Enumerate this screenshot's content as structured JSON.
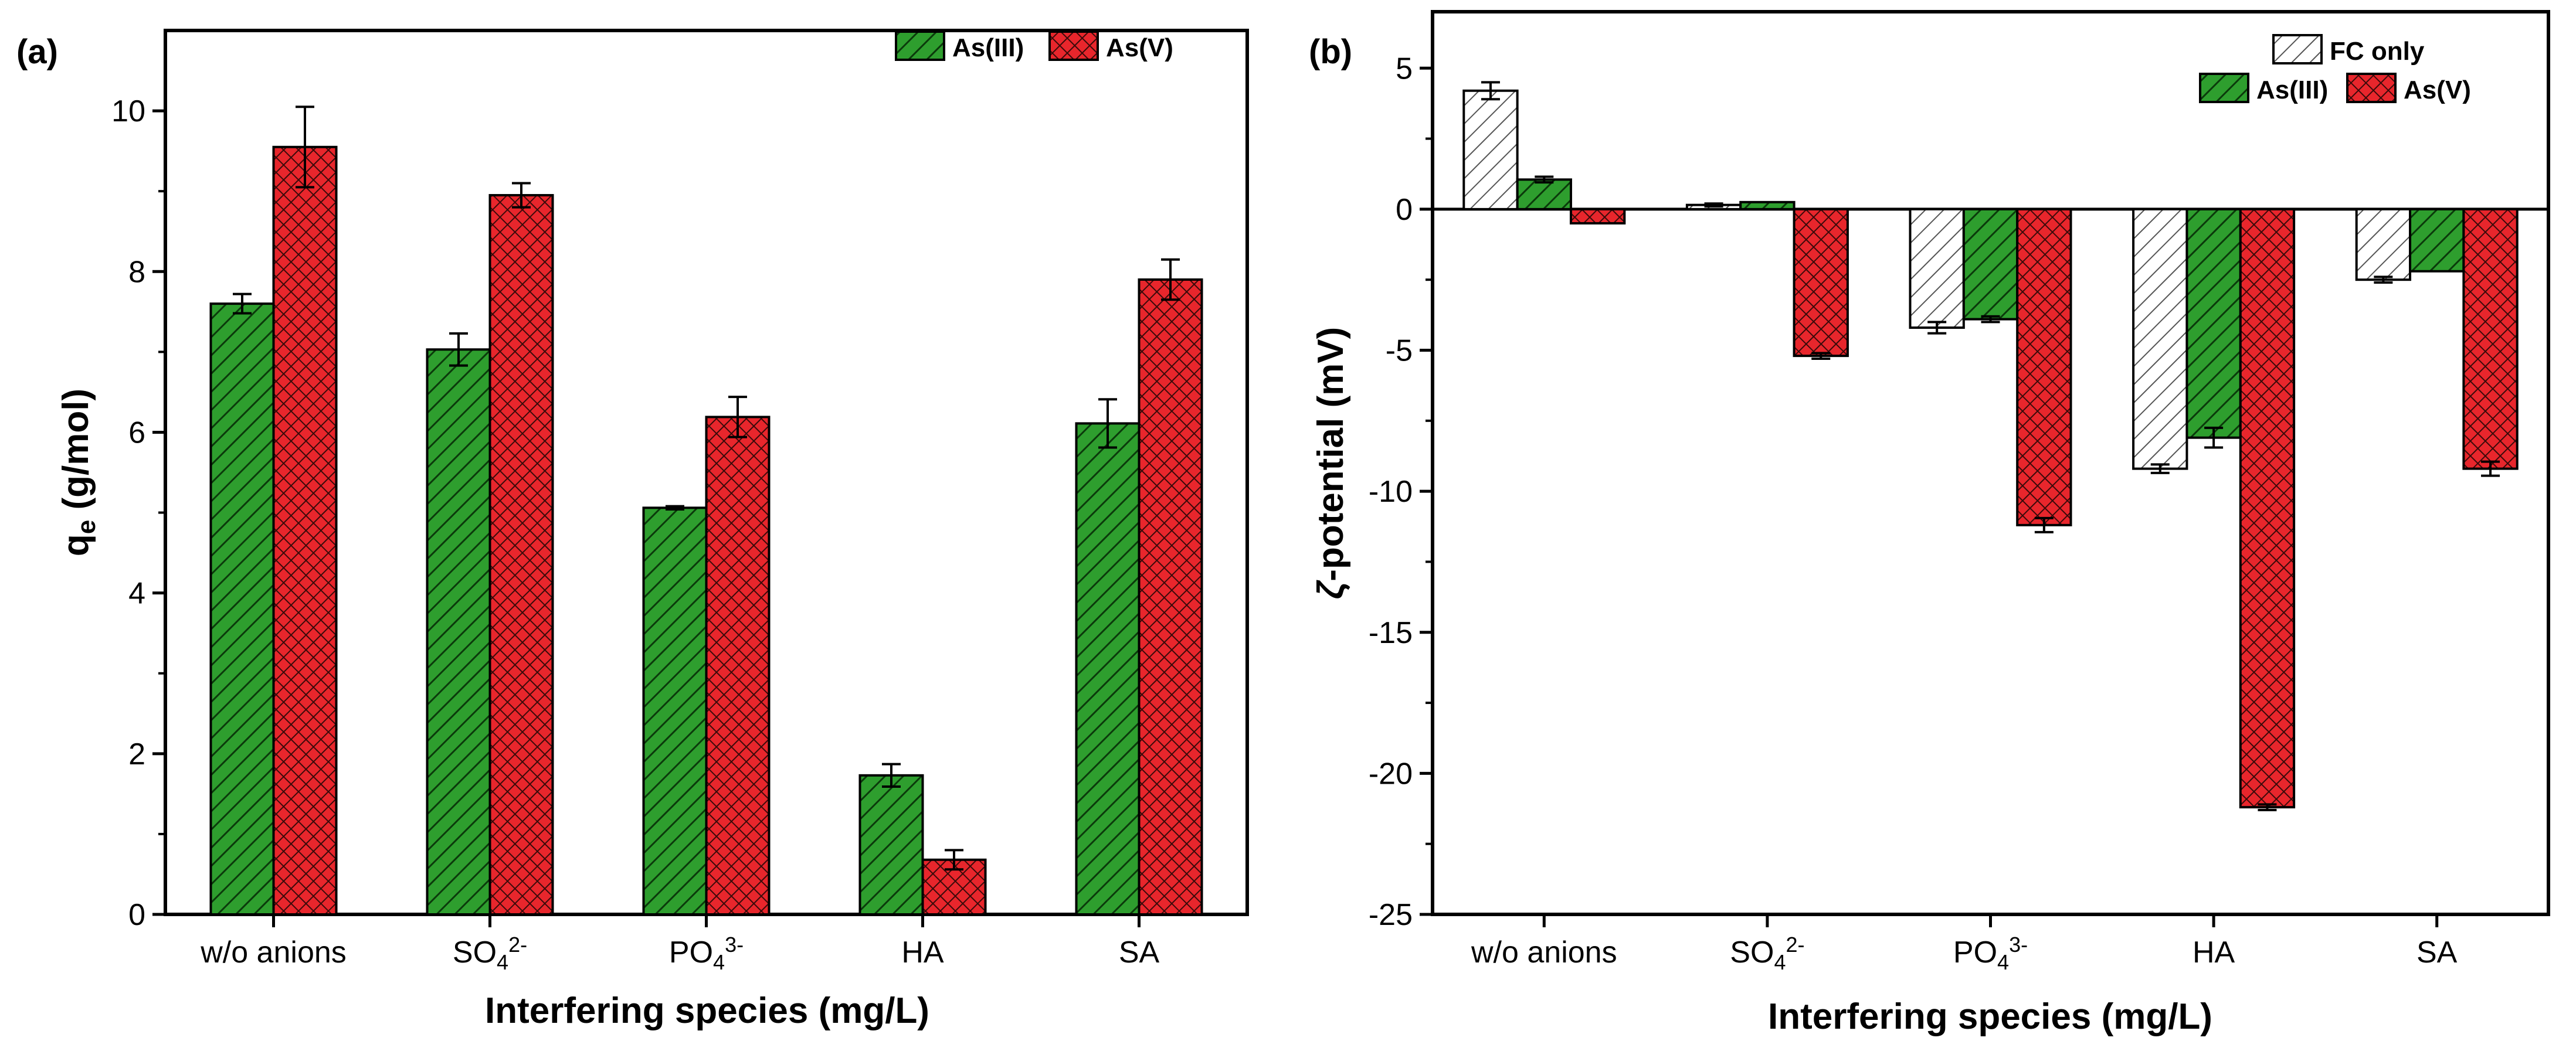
{
  "colors": {
    "green": "#2e9e2e",
    "red": "#e8262c",
    "hatch_bg": "#ffffff",
    "axis": "#000000"
  },
  "chart_data": [
    {
      "type": "bar",
      "panel_label": "(a)",
      "xlabel": "Interfering species (mg/L)",
      "ylabel_main": "q",
      "ylabel_sub": "e",
      "ylabel_tail": " (g/mol)",
      "ylim": [
        0,
        11
      ],
      "yticks": [
        "0",
        "2",
        "4",
        "6",
        "8",
        "10"
      ],
      "ytick_values": [
        0,
        2,
        4,
        6,
        8,
        10
      ],
      "categories": [
        {
          "base": "w/o anions",
          "sub": "",
          "sup": ""
        },
        {
          "base": "SO",
          "sub": "4",
          "sup": "2-"
        },
        {
          "base": "PO",
          "sub": "4",
          "sup": "3-"
        },
        {
          "base": "HA",
          "sub": "",
          "sup": ""
        },
        {
          "base": "SA",
          "sub": "",
          "sup": ""
        }
      ],
      "legend_position": "top-right",
      "grid": false,
      "series": [
        {
          "name": "As(III)",
          "pattern": "diag-green",
          "values": [
            7.6,
            7.03,
            5.06,
            1.73,
            6.11
          ],
          "errors": [
            0.12,
            0.2,
            0.02,
            0.14,
            0.3
          ]
        },
        {
          "name": "As(V)",
          "pattern": "cross-red",
          "values": [
            9.55,
            8.95,
            6.19,
            0.68,
            7.9
          ],
          "errors": [
            0.5,
            0.15,
            0.25,
            0.12,
            0.25
          ]
        }
      ]
    },
    {
      "type": "bar",
      "panel_label": "(b)",
      "xlabel": "Interfering species (mg/L)",
      "ylabel_main": "ζ",
      "ylabel_tail": "-potential (mV)",
      "ylim": [
        -25,
        7
      ],
      "yticks": [
        "5",
        "0",
        "-5",
        "-10",
        "-15",
        "-20",
        "-25"
      ],
      "ytick_values": [
        5,
        0,
        -5,
        -10,
        -15,
        -20,
        -25
      ],
      "categories": [
        {
          "base": "w/o anions",
          "sub": "",
          "sup": ""
        },
        {
          "base": "SO",
          "sub": "4",
          "sup": "2-"
        },
        {
          "base": "PO",
          "sub": "4",
          "sup": "3-"
        },
        {
          "base": "HA",
          "sub": "",
          "sup": ""
        },
        {
          "base": "SA",
          "sub": "",
          "sup": ""
        }
      ],
      "legend_position": "top-right",
      "grid": false,
      "series": [
        {
          "name": "FC only",
          "pattern": "diag-white",
          "values": [
            4.2,
            0.15,
            -4.2,
            -9.2,
            -2.5
          ],
          "errors": [
            0.3,
            0.05,
            0.2,
            0.15,
            0.1
          ]
        },
        {
          "name": "As(III)",
          "pattern": "diag-green",
          "values": [
            1.05,
            0.25,
            -3.9,
            -8.1,
            -2.2
          ],
          "errors": [
            0.1,
            0.0,
            0.1,
            0.35,
            0.0
          ]
        },
        {
          "name": "As(V)",
          "pattern": "cross-red",
          "values": [
            -0.5,
            -5.2,
            -11.2,
            -21.2,
            -9.2
          ],
          "errors": [
            0.0,
            0.1,
            0.25,
            0.1,
            0.25
          ]
        }
      ]
    }
  ]
}
